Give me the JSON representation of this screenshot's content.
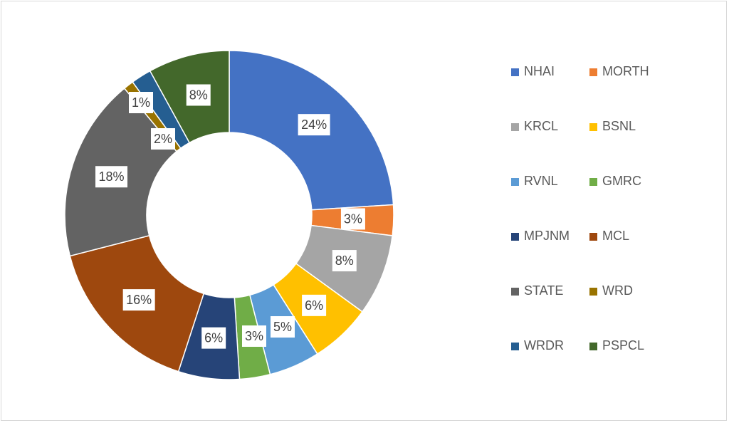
{
  "chart_data": {
    "type": "pie",
    "subtype": "donut",
    "title": "",
    "legend_position": "right",
    "data_labels": "percent",
    "slices": [
      {
        "name": "NHAI",
        "value": 24,
        "label": "24%",
        "color": "#4472C4"
      },
      {
        "name": "MORTH",
        "value": 3,
        "label": "3%",
        "color": "#ED7D31"
      },
      {
        "name": "KRCL",
        "value": 8,
        "label": "8%",
        "color": "#A5A5A5"
      },
      {
        "name": "BSNL",
        "value": 6,
        "label": "6%",
        "color": "#FFC000"
      },
      {
        "name": "RVNL",
        "value": 5,
        "label": "5%",
        "color": "#5B9BD5"
      },
      {
        "name": "GMRC",
        "value": 3,
        "label": "3%",
        "color": "#70AD47"
      },
      {
        "name": "MPJNM",
        "value": 6,
        "label": "6%",
        "color": "#264478"
      },
      {
        "name": "MCL",
        "value": 16,
        "label": "16%",
        "color": "#9E480E"
      },
      {
        "name": "STATE",
        "value": 18,
        "label": "18%",
        "color": "#636363"
      },
      {
        "name": "WRD",
        "value": 1,
        "label": "1%",
        "color": "#997300"
      },
      {
        "name": "WRDR",
        "value": 2,
        "label": "2%",
        "color": "#255E91"
      },
      {
        "name": "PSPCL",
        "value": 8,
        "label": "8%",
        "color": "#43682B"
      }
    ]
  }
}
